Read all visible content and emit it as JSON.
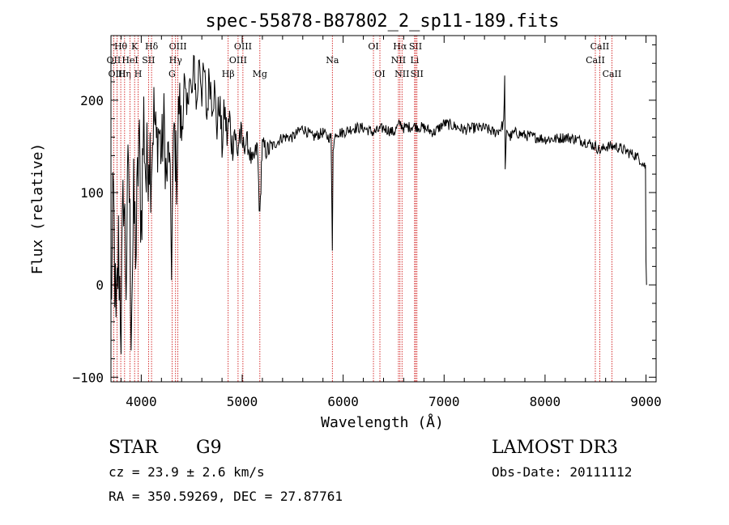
{
  "chart_data": {
    "type": "line",
    "title": "spec-55878-B87802_2_sp11-189.fits",
    "xlabel": "Wavelength (Å)",
    "ylabel": "Flux (relative)",
    "xlim": [
      3700,
      9100
    ],
    "ylim": [
      -105,
      270
    ],
    "x_ticks": [
      4000,
      5000,
      6000,
      7000,
      8000,
      9000
    ],
    "x_tick_labels": [
      "4000",
      "5000",
      "6000",
      "7000",
      "8000",
      "9000"
    ],
    "y_ticks": [
      -100,
      0,
      100,
      200
    ],
    "y_tick_labels": [
      "−100",
      "0",
      "100",
      "200"
    ],
    "series": [
      {
        "name": "spectrum",
        "color": "#000000",
        "x": [
          3700,
          3725,
          3750,
          3775,
          3800,
          3825,
          3850,
          3875,
          3900,
          3925,
          3950,
          3975,
          4000,
          4025,
          4050,
          4075,
          4100,
          4125,
          4150,
          4175,
          4200,
          4225,
          4250,
          4275,
          4300,
          4325,
          4350,
          4375,
          4400,
          4425,
          4450,
          4475,
          4500,
          4525,
          4550,
          4575,
          4600,
          4625,
          4650,
          4675,
          4700,
          4725,
          4750,
          4775,
          4800,
          4825,
          4850,
          4875,
          4900,
          4925,
          4950,
          4975,
          5000,
          5050,
          5100,
          5150,
          5175,
          5190,
          5200,
          5250,
          5300,
          5400,
          5500,
          5600,
          5700,
          5800,
          5850,
          5880,
          5893,
          5900,
          5930,
          6000,
          6100,
          6200,
          6300,
          6400,
          6500,
          6563,
          6600,
          6700,
          6800,
          6900,
          7000,
          7100,
          7200,
          7300,
          7400,
          7500,
          7550,
          7590,
          7600,
          7605,
          7620,
          7650,
          7700,
          7800,
          7900,
          8000,
          8100,
          8200,
          8300,
          8400,
          8500,
          8550,
          8600,
          8700,
          8800,
          8850,
          8900,
          8950,
          8980,
          8995,
          9000,
          9005
        ],
        "values": [
          -20,
          90,
          -60,
          40,
          -40,
          110,
          10,
          140,
          -30,
          80,
          40,
          160,
          70,
          180,
          110,
          160,
          130,
          190,
          150,
          170,
          140,
          175,
          110,
          150,
          30,
          170,
          120,
          200,
          160,
          220,
          180,
          230,
          200,
          240,
          190,
          250,
          210,
          230,
          180,
          230,
          200,
          210,
          170,
          200,
          150,
          190,
          160,
          180,
          150,
          170,
          140,
          165,
          150,
          155,
          130,
          150,
          70,
          130,
          150,
          145,
          150,
          160,
          160,
          170,
          160,
          165,
          160,
          160,
          40,
          150,
          165,
          165,
          170,
          170,
          165,
          170,
          165,
          175,
          170,
          172,
          170,
          165,
          175,
          172,
          168,
          170,
          170,
          165,
          168,
          175,
          225,
          120,
          170,
          160,
          165,
          162,
          160,
          158,
          158,
          160,
          158,
          155,
          150,
          145,
          150,
          150,
          145,
          142,
          140,
          135,
          130,
          128,
          25,
          0
        ]
      }
    ],
    "spectral_lines": [
      {
        "label": "Hθ",
        "wavelength": 3797,
        "row": 1
      },
      {
        "label": "OII",
        "wavelength": 3727,
        "row": 2
      },
      {
        "label": "OIII",
        "wavelength": 3760,
        "row": 3
      },
      {
        "label": "Hη",
        "wavelength": 3835,
        "row": 3
      },
      {
        "label": "HeI",
        "wavelength": 3889,
        "row": 2
      },
      {
        "label": "K",
        "wavelength": 3934,
        "row": 1
      },
      {
        "label": "H",
        "wavelength": 3969,
        "row": 3
      },
      {
        "label": "SII",
        "wavelength": 4072,
        "row": 2
      },
      {
        "label": "Hδ",
        "wavelength": 4102,
        "row": 1
      },
      {
        "label": "OIII",
        "wavelength": 4363,
        "row": 1
      },
      {
        "label": "Hγ",
        "wavelength": 4340,
        "row": 2
      },
      {
        "label": "G",
        "wavelength": 4305,
        "row": 3
      },
      {
        "label": "Hβ",
        "wavelength": 4861,
        "row": 3
      },
      {
        "label": "OIII",
        "wavelength": 5007,
        "row": 1
      },
      {
        "label": "OIII",
        "wavelength": 4959,
        "row": 2
      },
      {
        "label": "Mg",
        "wavelength": 5175,
        "row": 3
      },
      {
        "label": "Na",
        "wavelength": 5893,
        "row": 2
      },
      {
        "label": "OI",
        "wavelength": 6300,
        "row": 1
      },
      {
        "label": "OI",
        "wavelength": 6364,
        "row": 3
      },
      {
        "label": "Hα",
        "wavelength": 6563,
        "row": 1
      },
      {
        "label": "NII",
        "wavelength": 6548,
        "row": 2
      },
      {
        "label": "NII",
        "wavelength": 6583,
        "row": 3
      },
      {
        "label": "SII",
        "wavelength": 6717,
        "row": 1
      },
      {
        "label": "Li",
        "wavelength": 6708,
        "row": 2
      },
      {
        "label": "SII",
        "wavelength": 6731,
        "row": 3
      },
      {
        "label": "CaII",
        "wavelength": 8542,
        "row": 1
      },
      {
        "label": "CaII",
        "wavelength": 8498,
        "row": 2
      },
      {
        "label": "CaII",
        "wavelength": 8662,
        "row": 3
      }
    ]
  },
  "info": {
    "class": "STAR",
    "subclass": "G9",
    "survey": "LAMOST DR3",
    "cz": "cz = 23.9 ± 2.6 km/s",
    "obs_date": "Obs-Date: 20111112",
    "coords": "RA = 350.59269, DEC =  27.87761"
  }
}
